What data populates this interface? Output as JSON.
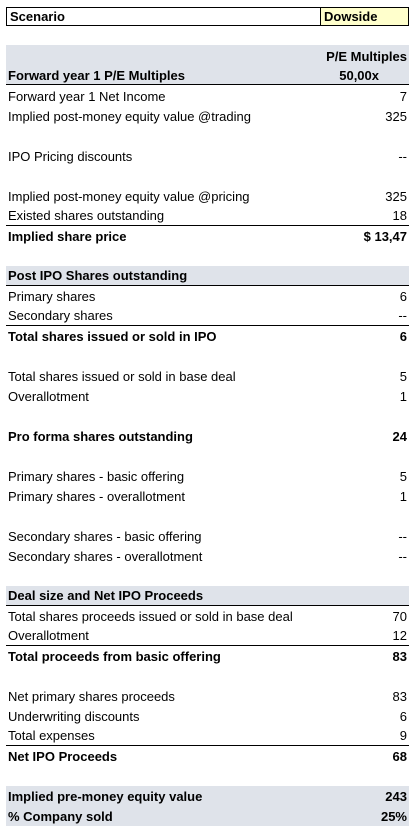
{
  "scenario": {
    "label": "Scenario",
    "value": "Dowside"
  },
  "pe": {
    "column_title": "P/E Multiples",
    "section_label": "Forward year 1 P/E Multiples",
    "multiple": "50,00x",
    "rows": [
      {
        "label": "Forward year 1 Net Income",
        "value": "7"
      },
      {
        "label": "Implied post-money equity value @trading",
        "value": "325"
      },
      {
        "label": "IPO Pricing discounts",
        "value": "--"
      },
      {
        "label": "Implied post-money equity value @pricing",
        "value": "325"
      },
      {
        "label": "Existed shares outstanding",
        "value": "18"
      },
      {
        "label": "Implied share price",
        "value": "$ 13,47"
      }
    ]
  },
  "shares": {
    "section_label": "Post IPO Shares outstanding",
    "rows": [
      {
        "label": "Primary shares",
        "value": "6"
      },
      {
        "label": "Secondary shares",
        "value": "--"
      },
      {
        "label": "Total shares issued or sold in IPO",
        "value": "6"
      },
      {
        "label": "Total shares issued or sold in base deal",
        "value": "5"
      },
      {
        "label": "Overallotment",
        "value": "1"
      },
      {
        "label": "Pro forma shares outstanding",
        "value": "24"
      },
      {
        "label": "Primary shares - basic offering",
        "value": "5"
      },
      {
        "label": "Primary shares - overallotment",
        "value": "1"
      },
      {
        "label": "Secondary shares - basic offering",
        "value": "--"
      },
      {
        "label": "Secondary shares - overallotment",
        "value": "--"
      }
    ]
  },
  "deal": {
    "section_label": "Deal size and Net IPO Proceeds",
    "rows": [
      {
        "label": "Total shares proceeds issued or sold in base deal",
        "value": "70"
      },
      {
        "label": "Overallotment",
        "value": "12"
      },
      {
        "label": "Total proceeds from basic offering",
        "value": "83"
      },
      {
        "label": "Net primary shares proceeds",
        "value": "83"
      },
      {
        "label": "Underwriting discounts",
        "value": "6"
      },
      {
        "label": "Total expenses",
        "value": "9"
      },
      {
        "label": "Net IPO Proceeds",
        "value": "68"
      }
    ]
  },
  "summary": {
    "rows": [
      {
        "label": "Implied pre-money equity value",
        "value": "243"
      },
      {
        "label": "% Company sold",
        "value": "25%"
      }
    ]
  }
}
